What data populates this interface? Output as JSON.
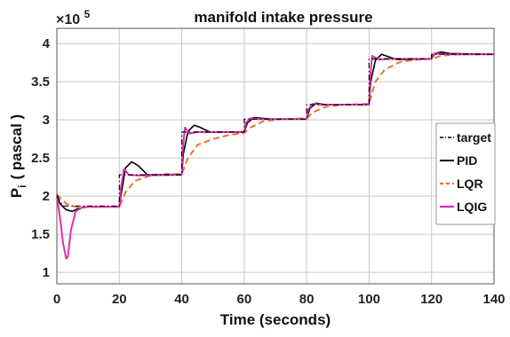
{
  "chart_data": {
    "type": "line",
    "title": "manifold intake pressure",
    "xlabel": "Time (seconds)",
    "ylabel": "Pᵢ ( pascal )",
    "ylabel_main": "P",
    "ylabel_sub": "i",
    "ylabel_unit": "( pascal )",
    "y_multiplier": "×10",
    "y_multiplier_exp": "5",
    "xlim": [
      0,
      140
    ],
    "ylim": [
      0.85,
      4.2
    ],
    "x_ticks": [
      0,
      20,
      40,
      60,
      80,
      100,
      120,
      140
    ],
    "x_tick_labels": [
      "0",
      "20",
      "40",
      "60",
      "80",
      "100",
      "120",
      "140"
    ],
    "y_ticks": [
      1,
      1.5,
      2,
      2.5,
      3,
      3.5,
      4
    ],
    "y_tick_labels": [
      "1",
      "1.5",
      "2",
      "2.5",
      "3",
      "3.5",
      "4"
    ],
    "grid": true,
    "legend_position": "right",
    "series": [
      {
        "name": "target",
        "color": "#000000",
        "style": "dashdot",
        "points": [
          [
            0,
            2.0
          ],
          [
            2,
            1.87
          ],
          [
            20,
            1.87
          ],
          [
            20,
            2.28
          ],
          [
            40,
            2.28
          ],
          [
            40,
            2.84
          ],
          [
            60,
            2.84
          ],
          [
            60,
            3.01
          ],
          [
            80,
            3.01
          ],
          [
            80,
            3.2
          ],
          [
            100,
            3.2
          ],
          [
            100,
            3.8
          ],
          [
            120,
            3.8
          ],
          [
            120,
            3.86
          ],
          [
            140,
            3.86
          ]
        ]
      },
      {
        "name": "PID",
        "color": "#000000",
        "style": "solid",
        "points": [
          [
            0,
            2.02
          ],
          [
            1,
            1.9
          ],
          [
            3,
            1.82
          ],
          [
            5,
            1.8
          ],
          [
            7,
            1.84
          ],
          [
            10,
            1.86
          ],
          [
            20,
            1.86
          ],
          [
            20.5,
            2.0
          ],
          [
            22,
            2.37
          ],
          [
            24,
            2.45
          ],
          [
            26,
            2.4
          ],
          [
            29,
            2.28
          ],
          [
            40,
            2.28
          ],
          [
            40.5,
            2.55
          ],
          [
            42,
            2.85
          ],
          [
            44,
            2.93
          ],
          [
            46,
            2.9
          ],
          [
            49,
            2.84
          ],
          [
            60,
            2.84
          ],
          [
            61,
            2.96
          ],
          [
            63,
            3.03
          ],
          [
            66,
            3.02
          ],
          [
            69,
            3.01
          ],
          [
            80,
            3.01
          ],
          [
            81,
            3.15
          ],
          [
            83,
            3.22
          ],
          [
            86,
            3.2
          ],
          [
            100,
            3.2
          ],
          [
            100.5,
            3.5
          ],
          [
            102,
            3.78
          ],
          [
            104,
            3.86
          ],
          [
            106,
            3.83
          ],
          [
            109,
            3.79
          ],
          [
            120,
            3.8
          ],
          [
            121,
            3.87
          ],
          [
            123,
            3.89
          ],
          [
            126,
            3.87
          ],
          [
            140,
            3.86
          ]
        ]
      },
      {
        "name": "LQR",
        "color": "#e8752f",
        "style": "dashed",
        "points": [
          [
            0,
            2.02
          ],
          [
            3,
            1.9
          ],
          [
            6,
            1.86
          ],
          [
            10,
            1.86
          ],
          [
            20,
            1.86
          ],
          [
            22,
            2.05
          ],
          [
            25,
            2.2
          ],
          [
            30,
            2.27
          ],
          [
            35,
            2.29
          ],
          [
            40,
            2.29
          ],
          [
            42,
            2.5
          ],
          [
            45,
            2.67
          ],
          [
            50,
            2.75
          ],
          [
            55,
            2.8
          ],
          [
            60,
            2.83
          ],
          [
            62,
            2.9
          ],
          [
            66,
            2.98
          ],
          [
            72,
            3.01
          ],
          [
            80,
            3.02
          ],
          [
            82,
            3.1
          ],
          [
            86,
            3.17
          ],
          [
            92,
            3.2
          ],
          [
            100,
            3.21
          ],
          [
            102,
            3.5
          ],
          [
            105,
            3.66
          ],
          [
            110,
            3.76
          ],
          [
            115,
            3.79
          ],
          [
            120,
            3.8
          ],
          [
            123,
            3.84
          ],
          [
            128,
            3.86
          ],
          [
            140,
            3.86
          ]
        ]
      },
      {
        "name": "LQIG",
        "color": "#e030b0",
        "style": "solid",
        "points": [
          [
            0,
            2.0
          ],
          [
            1,
            1.72
          ],
          [
            2,
            1.38
          ],
          [
            3,
            1.18
          ],
          [
            3.5,
            1.2
          ],
          [
            4.5,
            1.55
          ],
          [
            6,
            1.8
          ],
          [
            8,
            1.85
          ],
          [
            10,
            1.86
          ],
          [
            20,
            1.86
          ],
          [
            20.5,
            2.1
          ],
          [
            21.5,
            2.36
          ],
          [
            23,
            2.28
          ],
          [
            26,
            2.27
          ],
          [
            40,
            2.28
          ],
          [
            40.3,
            2.6
          ],
          [
            41,
            2.9
          ],
          [
            42.5,
            2.82
          ],
          [
            45,
            2.84
          ],
          [
            60,
            2.84
          ],
          [
            60.5,
            2.96
          ],
          [
            62,
            3.02
          ],
          [
            65,
            3.01
          ],
          [
            80,
            3.01
          ],
          [
            80.5,
            3.14
          ],
          [
            82,
            3.21
          ],
          [
            85,
            3.2
          ],
          [
            100,
            3.2
          ],
          [
            100.3,
            3.55
          ],
          [
            101,
            3.84
          ],
          [
            103,
            3.79
          ],
          [
            106,
            3.8
          ],
          [
            120,
            3.8
          ],
          [
            120.5,
            3.86
          ],
          [
            122,
            3.87
          ],
          [
            125,
            3.86
          ],
          [
            140,
            3.86
          ]
        ]
      }
    ]
  }
}
